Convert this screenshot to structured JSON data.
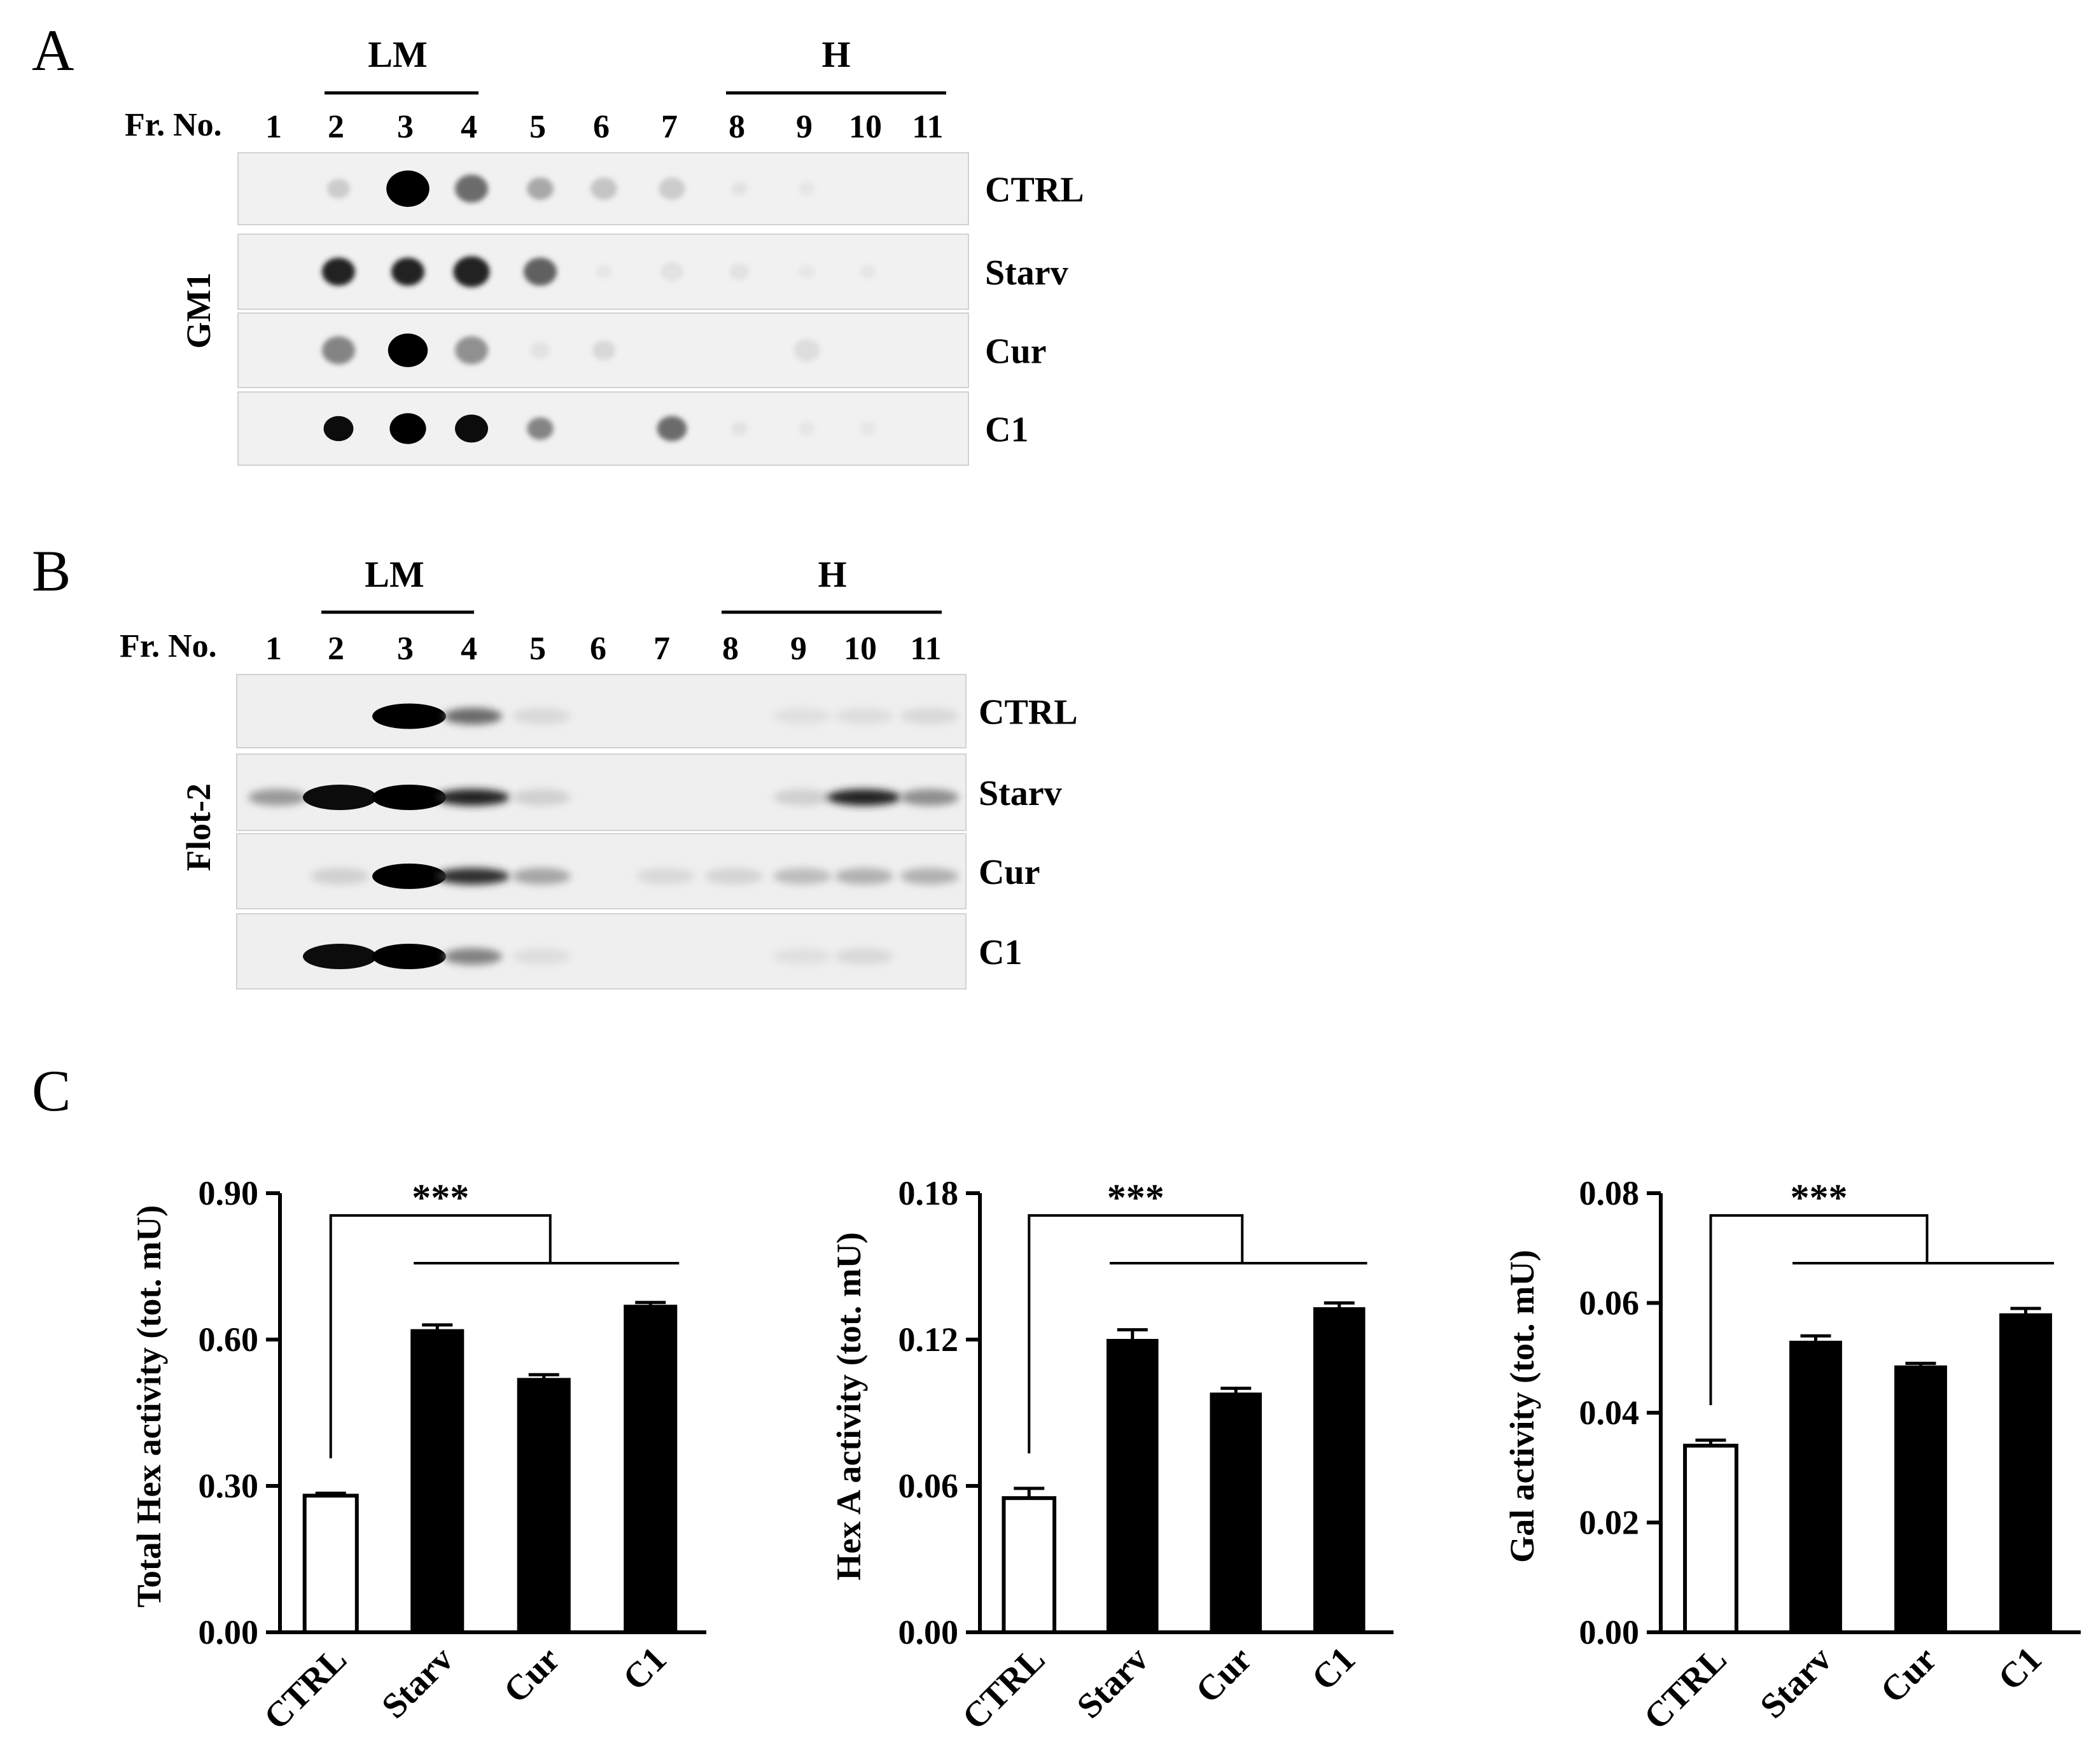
{
  "panels": {
    "A": {
      "letter": "A",
      "frac_label": "Fr. No.",
      "group_lm": "LM",
      "group_h": "H",
      "fractions": [
        "1",
        "2",
        "3",
        "4",
        "5",
        "6",
        "7",
        "8",
        "9",
        "10",
        "11"
      ],
      "ylabel": "GM1",
      "rows": [
        "CTRL",
        "Starv",
        "Cur",
        "C1"
      ],
      "dot_intensity": [
        [
          0.0,
          0.15,
          1.0,
          0.55,
          0.3,
          0.18,
          0.15,
          0.06,
          0.04,
          0.0,
          0.0
        ],
        [
          0.0,
          0.85,
          0.85,
          0.85,
          0.6,
          0.04,
          0.06,
          0.06,
          0.04,
          0.04,
          0.0
        ],
        [
          0.0,
          0.45,
          1.0,
          0.4,
          0.06,
          0.1,
          0.0,
          0.0,
          0.08,
          0.0,
          0.0
        ],
        [
          0.0,
          0.95,
          1.0,
          0.95,
          0.45,
          0.0,
          0.55,
          0.06,
          0.04,
          0.04,
          0.0
        ]
      ],
      "dot_size": [
        [
          0.0,
          0.7,
          1.3,
          1.0,
          0.8,
          0.8,
          0.8,
          0.5,
          0.5,
          0.0,
          0.0
        ],
        [
          0.0,
          1.0,
          1.0,
          1.1,
          1.0,
          0.5,
          0.7,
          0.6,
          0.5,
          0.5,
          0.0
        ],
        [
          0.0,
          1.0,
          1.2,
          1.0,
          0.6,
          0.7,
          0.0,
          0.0,
          0.8,
          0.0,
          0.0
        ],
        [
          0.0,
          0.9,
          1.1,
          1.0,
          0.8,
          0.0,
          0.9,
          0.5,
          0.5,
          0.5,
          0.0
        ]
      ]
    },
    "B": {
      "letter": "B",
      "frac_label": "Fr. No.",
      "group_lm": "LM",
      "group_h": "H",
      "fractions": [
        "1",
        "2",
        "3",
        "4",
        "5",
        "6",
        "7",
        "8",
        "9",
        "10",
        "11"
      ],
      "ylabel": "Flot-2",
      "rows": [
        "CTRL",
        "Starv",
        "Cur",
        "C1"
      ],
      "band_intensity": [
        [
          0.0,
          0.0,
          1.0,
          0.55,
          0.08,
          0.0,
          0.0,
          0.0,
          0.05,
          0.06,
          0.08
        ],
        [
          0.35,
          0.95,
          1.0,
          0.85,
          0.12,
          0.0,
          0.0,
          0.0,
          0.12,
          0.85,
          0.4
        ],
        [
          0.0,
          0.12,
          1.0,
          0.8,
          0.3,
          0.0,
          0.08,
          0.1,
          0.2,
          0.25,
          0.25
        ],
        [
          0.0,
          0.95,
          1.0,
          0.45,
          0.06,
          0.0,
          0.0,
          0.0,
          0.05,
          0.08,
          0.0
        ]
      ]
    },
    "C": {
      "letter": "C"
    }
  },
  "chart_data": [
    {
      "type": "bar",
      "categories": [
        "CTRL",
        "Starv",
        "Cur",
        "C1"
      ],
      "values": [
        0.28,
        0.62,
        0.52,
        0.67
      ],
      "errors": [
        0.005,
        0.01,
        0.008,
        0.006
      ],
      "ylabel": "Total Hex activity (tot. mU)",
      "ylim": [
        0,
        0.9
      ],
      "yticks": [
        "0.00",
        "0.30",
        "0.60",
        "0.90"
      ],
      "bar_fill": [
        "#ffffff",
        "#000000",
        "#000000",
        "#000000"
      ],
      "significance": "***"
    },
    {
      "type": "bar",
      "categories": [
        "CTRL",
        "Starv",
        "Cur",
        "C1"
      ],
      "values": [
        0.055,
        0.12,
        0.098,
        0.133
      ],
      "errors": [
        0.004,
        0.004,
        0.002,
        0.002
      ],
      "ylabel": "Hex A activity (tot. mU)",
      "ylim": [
        0,
        0.18
      ],
      "yticks": [
        "0.00",
        "0.06",
        "0.12",
        "0.18"
      ],
      "bar_fill": [
        "#ffffff",
        "#000000",
        "#000000",
        "#000000"
      ],
      "significance": "***"
    },
    {
      "type": "bar",
      "categories": [
        "CTRL",
        "Starv",
        "Cur",
        "C1"
      ],
      "values": [
        0.034,
        0.053,
        0.0485,
        0.058
      ],
      "errors": [
        0.001,
        0.001,
        0.0005,
        0.001
      ],
      "ylabel": "Gal activity (tot. mU)",
      "ylim": [
        0,
        0.08
      ],
      "yticks": [
        "0.00",
        "0.02",
        "0.04",
        "0.06",
        "0.08"
      ],
      "bar_fill": [
        "#ffffff",
        "#000000",
        "#000000",
        "#000000"
      ],
      "significance": "***"
    }
  ]
}
